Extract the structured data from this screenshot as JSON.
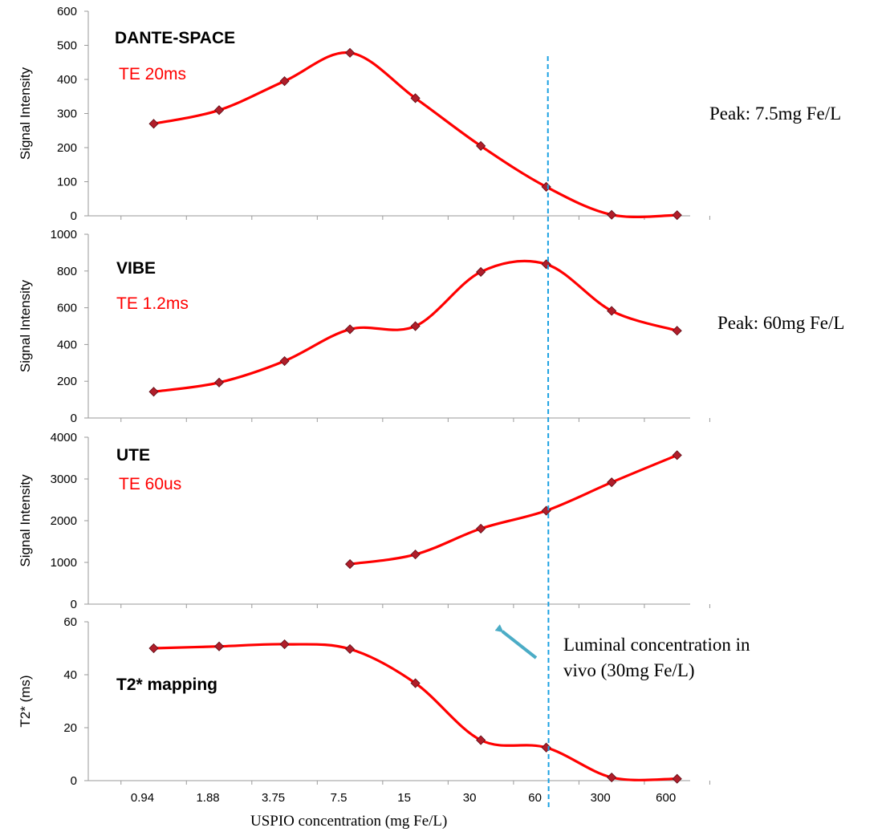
{
  "chart_data": {
    "type": "line",
    "x_categories": [
      "0.94",
      "1.88",
      "3.75",
      "7.5",
      "15",
      "30",
      "60",
      "300",
      "600"
    ],
    "xlabel": "USPIO concentration (mg Fe/L)",
    "colors": {
      "line": "#ff0000",
      "marker": "#b01e2a",
      "marker_edge": "#5a0a14",
      "guide": "#1ba1e2",
      "arrow": "#4bacc6",
      "axis": "#9a9a9a"
    },
    "vertical_guide": {
      "at_category": "60"
    },
    "panels": [
      {
        "id": "dante",
        "title": "DANTE-SPACE",
        "subtitle": "TE 20ms",
        "ylabel": "Signal Intensity",
        "ylim": [
          0,
          600
        ],
        "yticks": [
          0,
          100,
          200,
          300,
          400,
          500,
          600
        ],
        "peak_note": "Peak: 7.5mg Fe/L",
        "x": [
          0,
          1,
          2,
          3,
          4,
          5,
          6,
          7,
          8
        ],
        "values": [
          270,
          310,
          395,
          478,
          345,
          205,
          85,
          3,
          2
        ]
      },
      {
        "id": "vibe",
        "title": "VIBE",
        "subtitle": "TE 1.2ms",
        "ylabel": "Signal Intensity",
        "ylim": [
          0,
          1000
        ],
        "yticks": [
          0,
          200,
          400,
          600,
          800,
          1000
        ],
        "peak_note": "Peak: 60mg Fe/L",
        "x": [
          0,
          1,
          2,
          3,
          4,
          5,
          6,
          7,
          8
        ],
        "values": [
          143,
          193,
          310,
          483,
          500,
          795,
          837,
          583,
          475
        ]
      },
      {
        "id": "ute",
        "title": "UTE",
        "subtitle": "TE 60us",
        "ylabel": "Signal Intensity",
        "ylim": [
          0,
          4000
        ],
        "yticks": [
          0,
          1000,
          2000,
          3000,
          4000
        ],
        "peak_note": "",
        "x": [
          3,
          4,
          5,
          6,
          7,
          8
        ],
        "values": [
          960,
          1190,
          1810,
          2240,
          2920,
          3570
        ]
      },
      {
        "id": "t2star",
        "title": "T2* mapping",
        "subtitle": "",
        "ylabel": "T2* (ms)",
        "ylim": [
          0,
          60
        ],
        "yticks": [
          0,
          20,
          40,
          60
        ],
        "peak_note": "",
        "x": [
          0,
          1,
          2,
          3,
          4,
          5,
          6,
          7,
          8
        ],
        "values": [
          50,
          50.7,
          51.5,
          49.7,
          36.8,
          15.3,
          12.5,
          1.2,
          0.7
        ]
      }
    ],
    "annotation": {
      "line1": "Luminal concentration in",
      "line2": "vivo (30mg Fe/L)"
    }
  }
}
